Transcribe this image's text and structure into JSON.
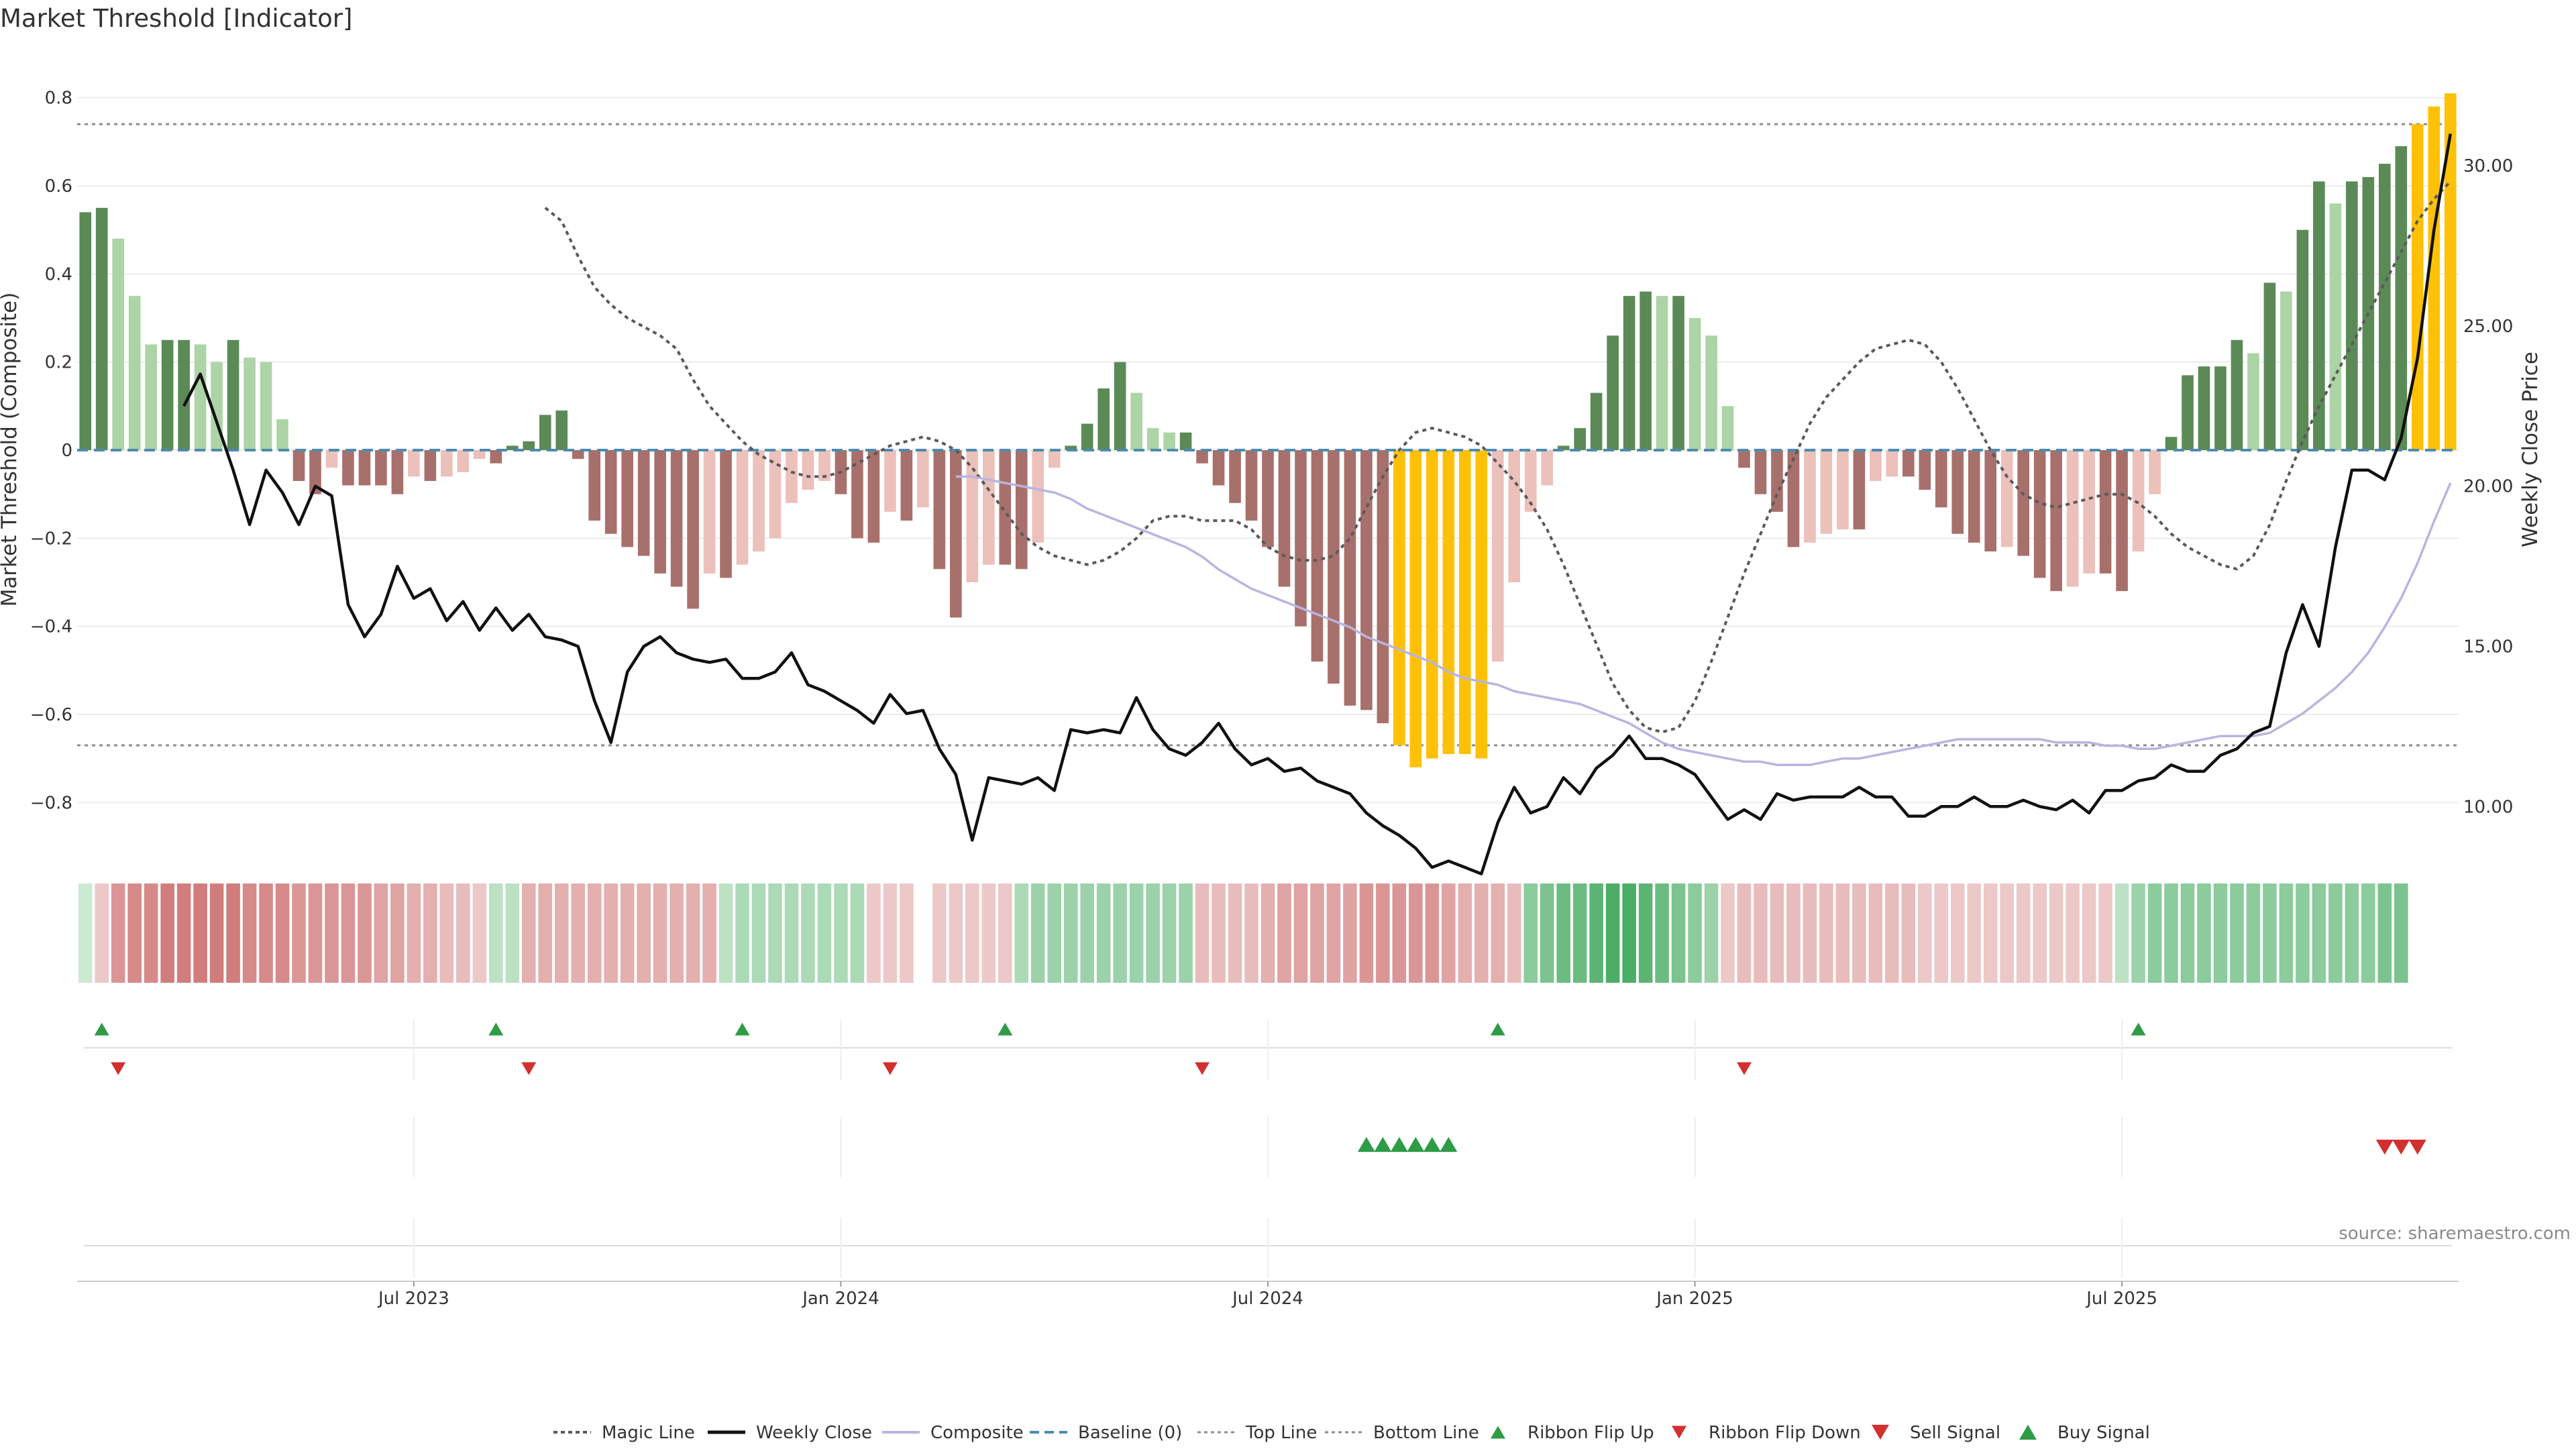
{
  "chart_data": {
    "type": "bar",
    "title": "Market Threshold [Indicator]",
    "ylabel": "Market Threshold (Composite)",
    "y2label": "Weekly Close Price",
    "ylim": [
      -0.9,
      0.9
    ],
    "y2lim": [
      8.75,
      33.5
    ],
    "yticks": [
      "0.8",
      "0.6",
      "0.4",
      "0.2",
      "0",
      "−0.2",
      "−0.4",
      "−0.6",
      "−0.8"
    ],
    "y2ticks": [
      "30.00",
      "25.00",
      "20.00",
      "15.00",
      "10.00"
    ],
    "xticks": [
      "Jul 2023",
      "Jan 2024",
      "Jul 2024",
      "Jan 2025",
      "Jul 2025"
    ],
    "xtick_weeks": [
      20,
      46,
      72,
      98,
      124
    ],
    "top_line": 0.74,
    "bottom_line": -0.67,
    "composite": [
      0.54,
      0.55,
      0.48,
      0.35,
      0.24,
      0.25,
      0.25,
      0.24,
      0.2,
      0.25,
      0.21,
      0.2,
      0.07,
      -0.07,
      -0.1,
      -0.04,
      -0.08,
      -0.08,
      -0.08,
      -0.1,
      -0.06,
      -0.07,
      -0.06,
      -0.05,
      -0.02,
      -0.03,
      0.01,
      0.02,
      0.08,
      0.09,
      -0.02,
      -0.16,
      -0.19,
      -0.22,
      -0.24,
      -0.28,
      -0.31,
      -0.36,
      -0.28,
      -0.29,
      -0.26,
      -0.23,
      -0.2,
      -0.12,
      -0.09,
      -0.07,
      -0.1,
      -0.2,
      -0.21,
      -0.14,
      -0.16,
      -0.13,
      -0.27,
      -0.38,
      -0.3,
      -0.26,
      -0.26,
      -0.27,
      -0.21,
      -0.04,
      0.01,
      0.06,
      0.14,
      0.2,
      0.13,
      0.05,
      0.04,
      0.04,
      -0.03,
      -0.08,
      -0.12,
      -0.16,
      -0.22,
      -0.31,
      -0.4,
      -0.48,
      -0.53,
      -0.58,
      -0.59,
      -0.62,
      -0.67,
      -0.72,
      -0.7,
      -0.69,
      -0.69,
      -0.7,
      -0.48,
      -0.3,
      -0.14,
      -0.08,
      0.01,
      0.05,
      0.13,
      0.26,
      0.35,
      0.36,
      0.35,
      0.35,
      0.3,
      0.26,
      0.1,
      -0.04,
      -0.1,
      -0.14,
      -0.22,
      -0.21,
      -0.19,
      -0.18,
      -0.18,
      -0.07,
      -0.06,
      -0.06,
      -0.09,
      -0.13,
      -0.19,
      -0.21,
      -0.23,
      -0.22,
      -0.24,
      -0.29,
      -0.32,
      -0.31,
      -0.28,
      -0.28,
      -0.32,
      -0.23,
      -0.1,
      0.03,
      0.17,
      0.19,
      0.19,
      0.25,
      0.22,
      0.38,
      0.36,
      0.5,
      0.61,
      0.56,
      0.61,
      0.62,
      0.65,
      0.69,
      0.74,
      0.78,
      0.81
    ],
    "magic_line": [
      0.55,
      0.52,
      0.44,
      0.37,
      0.33,
      0.3,
      0.28,
      0.26,
      0.23,
      0.16,
      0.1,
      0.06,
      0.02,
      -0.01,
      -0.03,
      -0.05,
      -0.06,
      -0.06,
      -0.05,
      -0.03,
      -0.01,
      0.01,
      0.02,
      0.03,
      0.02,
      0.0,
      -0.04,
      -0.09,
      -0.14,
      -0.19,
      -0.22,
      -0.24,
      -0.25,
      -0.26,
      -0.25,
      -0.23,
      -0.2,
      -0.16,
      -0.15,
      -0.15,
      -0.16,
      -0.16,
      -0.16,
      -0.18,
      -0.22,
      -0.24,
      -0.25,
      -0.25,
      -0.24,
      -0.2,
      -0.13,
      -0.06,
      0.0,
      0.04,
      0.05,
      0.04,
      0.03,
      0.01,
      -0.03,
      -0.07,
      -0.12,
      -0.18,
      -0.26,
      -0.35,
      -0.44,
      -0.53,
      -0.59,
      -0.63,
      -0.64,
      -0.63,
      -0.57,
      -0.48,
      -0.38,
      -0.28,
      -0.19,
      -0.1,
      -0.02,
      0.06,
      0.12,
      0.16,
      0.2,
      0.23,
      0.24,
      0.25,
      0.24,
      0.2,
      0.14,
      0.07,
      0.0,
      -0.06,
      -0.1,
      -0.12,
      -0.13,
      -0.12,
      -0.11,
      -0.1,
      -0.1,
      -0.12,
      -0.15,
      -0.19,
      -0.22,
      -0.24,
      -0.26,
      -0.27,
      -0.24,
      -0.17,
      -0.07,
      0.02,
      0.1,
      0.17,
      0.24,
      0.31,
      0.38,
      0.45,
      0.52,
      0.57,
      0.61
    ],
    "weekly_close": [
      22.5,
      23.5,
      22.0,
      20.5,
      18.8,
      20.5,
      19.8,
      18.8,
      20.0,
      19.7,
      16.3,
      15.3,
      16.0,
      17.5,
      16.5,
      16.8,
      15.8,
      16.4,
      15.5,
      16.2,
      15.5,
      16.0,
      15.3,
      15.2,
      15.0,
      13.3,
      12.0,
      14.2,
      15.0,
      15.3,
      14.8,
      14.6,
      14.5,
      14.6,
      14.0,
      14.0,
      14.2,
      14.8,
      13.8,
      13.6,
      13.3,
      13.0,
      12.6,
      13.5,
      12.9,
      13.0,
      11.8,
      11.0,
      8.95,
      10.9,
      10.8,
      10.7,
      10.9,
      10.5,
      12.4,
      12.3,
      12.4,
      12.3,
      13.4,
      12.4,
      11.8,
      11.6,
      12.0,
      12.6,
      11.8,
      11.3,
      11.5,
      11.1,
      11.2,
      10.8,
      10.6,
      10.4,
      9.8,
      9.4,
      9.1,
      8.7,
      8.1,
      8.3,
      8.1,
      7.9,
      9.5,
      10.6,
      9.8,
      10.0,
      10.9,
      10.4,
      11.2,
      11.6,
      12.2,
      11.5,
      11.5,
      11.3,
      11.0,
      10.3,
      9.6,
      9.9,
      9.6,
      10.4,
      10.2,
      10.3,
      10.3,
      10.3,
      10.6,
      10.3,
      10.3,
      9.7,
      9.7,
      10.0,
      10.0,
      10.3,
      10.0,
      10.0,
      10.2,
      10.0,
      9.9,
      10.2,
      9.8,
      10.5,
      10.5,
      10.8,
      10.9,
      11.3,
      11.1,
      11.1,
      11.6,
      11.8,
      12.3,
      12.5,
      14.8,
      16.3,
      15.0,
      18.1,
      20.5,
      20.5,
      20.2,
      21.5,
      24.0,
      28.0,
      31.0
    ],
    "composite_line": [
      20.3,
      20.3,
      20.2,
      20.1,
      20.0,
      19.9,
      19.8,
      19.6,
      19.3,
      19.1,
      18.9,
      18.7,
      18.5,
      18.3,
      18.1,
      17.8,
      17.4,
      17.1,
      16.8,
      16.6,
      16.4,
      16.2,
      16.0,
      15.8,
      15.6,
      15.3,
      15.1,
      14.9,
      14.7,
      14.5,
      14.2,
      14.0,
      13.9,
      13.8,
      13.6,
      13.5,
      13.4,
      13.3,
      13.2,
      13.0,
      12.8,
      12.6,
      12.3,
      12.0,
      11.8,
      11.7,
      11.6,
      11.5,
      11.4,
      11.4,
      11.3,
      11.3,
      11.3,
      11.4,
      11.5,
      11.5,
      11.6,
      11.7,
      11.8,
      11.9,
      12.0,
      12.1,
      12.1,
      12.1,
      12.1,
      12.1,
      12.1,
      12.0,
      12.0,
      12.0,
      11.9,
      11.9,
      11.8,
      11.8,
      11.9,
      12.0,
      12.1,
      12.2,
      12.2,
      12.2,
      12.3,
      12.6,
      12.9,
      13.3,
      13.7,
      14.2,
      14.8,
      15.6,
      16.5,
      17.6,
      18.9,
      20.1
    ],
    "ribbon": [
      0.1,
      -0.2,
      -0.6,
      -0.7,
      -0.7,
      -0.8,
      -0.8,
      -0.8,
      -0.8,
      -0.8,
      -0.7,
      -0.7,
      -0.7,
      -0.6,
      -0.6,
      -0.6,
      -0.6,
      -0.6,
      -0.5,
      -0.5,
      -0.4,
      -0.4,
      -0.3,
      -0.3,
      -0.2,
      0.2,
      0.2,
      -0.4,
      -0.4,
      -0.4,
      -0.4,
      -0.4,
      -0.4,
      -0.4,
      -0.4,
      -0.4,
      -0.4,
      -0.4,
      -0.4,
      0.2,
      0.3,
      0.3,
      0.3,
      0.3,
      0.3,
      0.3,
      0.3,
      0.3,
      -0.2,
      -0.2,
      -0.2,
      null,
      -0.2,
      -0.2,
      -0.2,
      -0.2,
      -0.2,
      0.3,
      0.4,
      0.4,
      0.4,
      0.4,
      0.4,
      0.4,
      0.4,
      0.4,
      0.4,
      0.4,
      -0.3,
      -0.3,
      -0.3,
      -0.3,
      -0.4,
      -0.5,
      -0.5,
      -0.5,
      -0.5,
      -0.5,
      -0.6,
      -0.6,
      -0.6,
      -0.6,
      -0.6,
      -0.5,
      -0.4,
      -0.4,
      -0.4,
      -0.3,
      0.5,
      0.6,
      0.7,
      0.7,
      0.8,
      0.9,
      0.9,
      0.8,
      0.7,
      0.6,
      0.5,
      0.4,
      -0.2,
      -0.3,
      -0.3,
      -0.3,
      -0.3,
      -0.3,
      -0.3,
      -0.3,
      -0.3,
      -0.3,
      -0.3,
      -0.3,
      -0.2,
      -0.2,
      -0.2,
      -0.2,
      -0.2,
      -0.2,
      -0.2,
      -0.2,
      -0.2,
      -0.2,
      -0.2,
      -0.2,
      0.2,
      0.4,
      0.5,
      0.5,
      0.5,
      0.5,
      0.5,
      0.5,
      0.5,
      0.5,
      0.5,
      0.5,
      0.5,
      0.5,
      0.5,
      0.5,
      0.6,
      0.6
    ],
    "ribbon_flip_up_weeks": [
      1,
      25,
      40,
      56,
      86,
      125
    ],
    "ribbon_flip_down_weeks": [
      2,
      27,
      49,
      68,
      101
    ],
    "buy_signal_weeks": [
      78,
      79,
      80,
      81,
      82,
      83
    ],
    "sell_signal_weeks": [
      140,
      141,
      142
    ],
    "colors": {
      "pos_strong": "#5b8a57",
      "pos_weak": "#acd4a6",
      "neg_strong": "#a8706c",
      "neg_weak": "#ecc0bb",
      "extreme": "#ffc107",
      "magic": "#5a5a5a",
      "close": "#111111",
      "composite": "#b9b4e0",
      "baseline": "#4e8bb0",
      "threshold": "#8c8c8c",
      "flip_up": "#2e9b46",
      "flip_down": "#d32f2f"
    },
    "legend": [
      "Magic Line",
      "Weekly Close",
      "Composite",
      "Baseline (0)",
      "Top Line",
      "Bottom Line",
      "Ribbon Flip Up",
      "Ribbon Flip Down",
      "Sell Signal",
      "Buy Signal"
    ],
    "source": "source: sharemaestro.com"
  }
}
